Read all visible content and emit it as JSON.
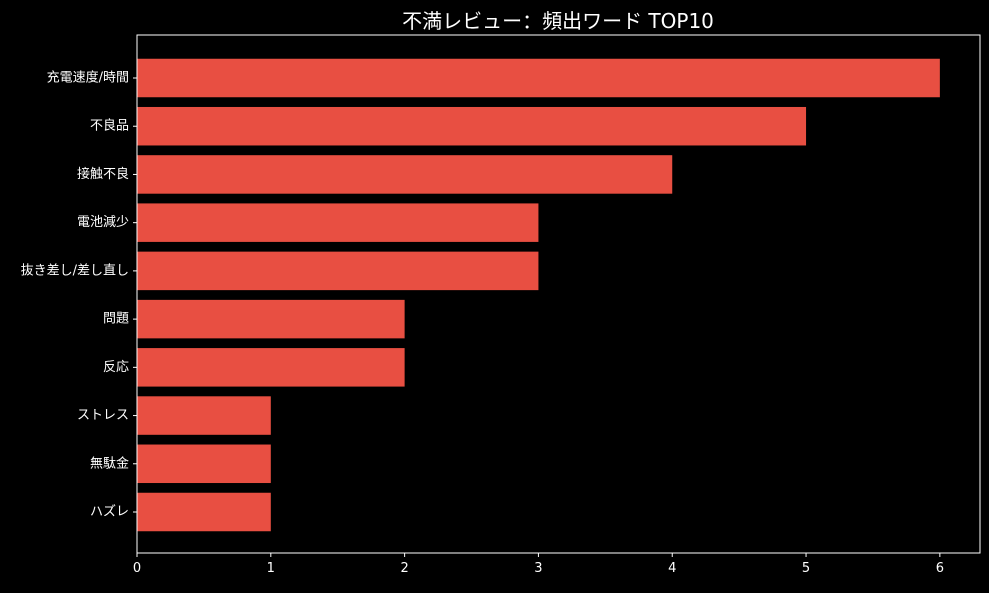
{
  "chart_data": {
    "type": "bar",
    "orientation": "horizontal",
    "title": "不満レビュー：頻出ワード TOP10",
    "xlabel": "",
    "ylabel": "",
    "categories": [
      "充電速度/時間",
      "不良品",
      "接触不良",
      "電池減少",
      "抜き差し/差し直し",
      "問題",
      "反応",
      "ストレス",
      "無駄金",
      "ハズレ"
    ],
    "values": [
      6,
      5,
      4,
      3,
      3,
      2,
      2,
      1,
      1,
      1
    ],
    "xlim": [
      0,
      6.3
    ],
    "xticks": [
      "0",
      "1",
      "2",
      "3",
      "4",
      "5",
      "6"
    ],
    "grid": false,
    "legend": "none",
    "colors": {
      "background": "#000000",
      "bar": "#e84f42",
      "text": "#ffffff",
      "axis": "#ffffff"
    }
  }
}
